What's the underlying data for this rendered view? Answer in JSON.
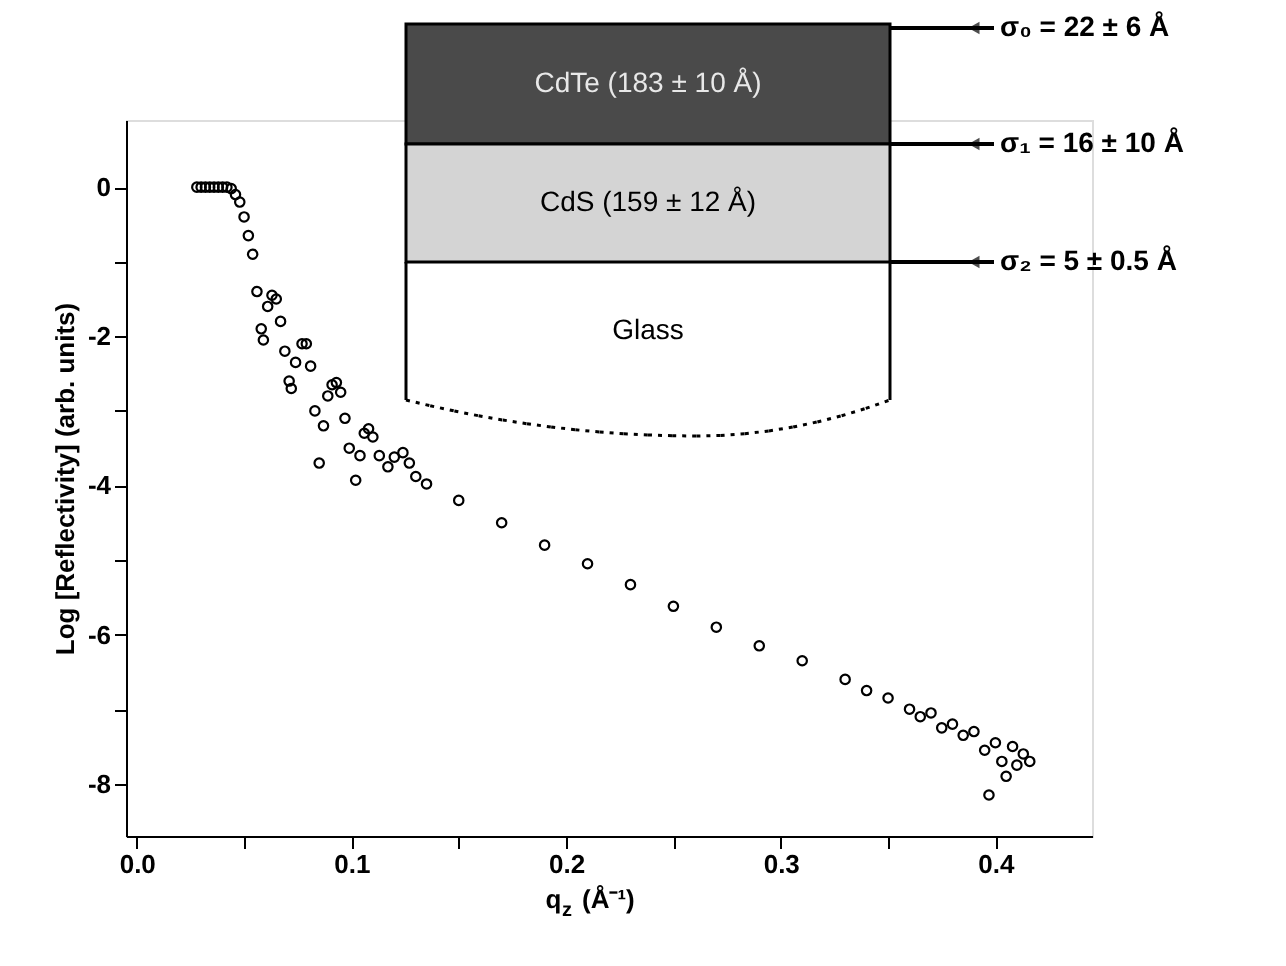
{
  "chart_data": {
    "type": "scatter",
    "xlabel": "q$_{z}$ (Å⁻¹)",
    "ylabel": "Log [Reflectivity] (arb. units)",
    "x": [
      0.028,
      0.03,
      0.032,
      0.034,
      0.036,
      0.038,
      0.04,
      0.042,
      0.044,
      0.046,
      0.048,
      0.05,
      0.052,
      0.054,
      0.056,
      0.058,
      0.059,
      0.061,
      0.063,
      0.065,
      0.067,
      0.069,
      0.071,
      0.072,
      0.074,
      0.077,
      0.079,
      0.081,
      0.083,
      0.085,
      0.087,
      0.089,
      0.091,
      0.093,
      0.095,
      0.097,
      0.099,
      0.102,
      0.104,
      0.106,
      0.108,
      0.11,
      0.113,
      0.117,
      0.12,
      0.124,
      0.127,
      0.13,
      0.135,
      0.15,
      0.17,
      0.19,
      0.21,
      0.23,
      0.25,
      0.27,
      0.29,
      0.31,
      0.33,
      0.34,
      0.35,
      0.36,
      0.365,
      0.37,
      0.375,
      0.38,
      0.385,
      0.39,
      0.395,
      0.397,
      0.4,
      0.403,
      0.405,
      0.408,
      0.41,
      0.413,
      0.416
    ],
    "series": [
      {
        "color": "#000000",
        "values": [
          0,
          0,
          0,
          0,
          0,
          0,
          0,
          0,
          -0.02,
          -0.1,
          -0.2,
          -0.4,
          -0.65,
          -0.9,
          -1.4,
          -1.9,
          -2.05,
          -1.6,
          -1.45,
          -1.5,
          -1.8,
          -2.2,
          -2.6,
          -2.7,
          -2.35,
          -2.1,
          -2.1,
          -2.4,
          -3.0,
          -3.7,
          -3.2,
          -2.8,
          -2.65,
          -2.62,
          -2.75,
          -3.1,
          -3.5,
          -3.93,
          -3.6,
          -3.3,
          -3.24,
          -3.35,
          -3.6,
          -3.75,
          -3.62,
          -3.56,
          -3.7,
          -3.88,
          -3.98,
          -4.2,
          -4.5,
          -4.8,
          -5.05,
          -5.33,
          -5.62,
          -5.9,
          -6.15,
          -6.35,
          -6.6,
          -6.75,
          -6.85,
          -7.0,
          -7.1,
          -7.05,
          -7.25,
          -7.2,
          -7.35,
          -7.3,
          -7.55,
          -8.15,
          -7.45,
          -7.7,
          -7.9,
          -7.5,
          -7.75,
          -7.6,
          -7.7
        ]
      }
    ],
    "xlim": [
      -0.005,
      0.445
    ],
    "xticks": [
      {
        "value": 0,
        "label": "0.0"
      },
      {
        "value": 0.05,
        "label": null
      },
      {
        "value": 0.1,
        "label": "0.1"
      },
      {
        "value": 0.15,
        "label": null
      },
      {
        "value": 0.2,
        "label": "0.2"
      },
      {
        "value": 0.25,
        "label": null
      },
      {
        "value": 0.3,
        "label": "0.3"
      },
      {
        "value": 0.35,
        "label": null
      },
      {
        "value": 0.4,
        "label": "0.4"
      }
    ],
    "ylim": [
      -8.7,
      0.9
    ],
    "yticks": [
      {
        "value": -8,
        "label": "-8"
      },
      {
        "value": -7,
        "label": null
      },
      {
        "value": -6,
        "label": "-6"
      },
      {
        "value": -5,
        "label": null
      },
      {
        "value": -4,
        "label": "-4"
      },
      {
        "value": -3,
        "label": null
      },
      {
        "value": -2,
        "label": "-2"
      },
      {
        "value": -1,
        "label": null
      },
      {
        "value": 0,
        "label": "0"
      }
    ],
    "marker": "circle",
    "grid": false,
    "annotations": [
      "σ₀ = 22 ± 6 Å",
      "σ₁ = 16 ± 10 Å",
      "σ₂ = 5 ± 0.5 Å",
      "CdTe (183 ± 10 Å)",
      "CdS (159 ± 12 Å)",
      "Glass"
    ]
  }
}
